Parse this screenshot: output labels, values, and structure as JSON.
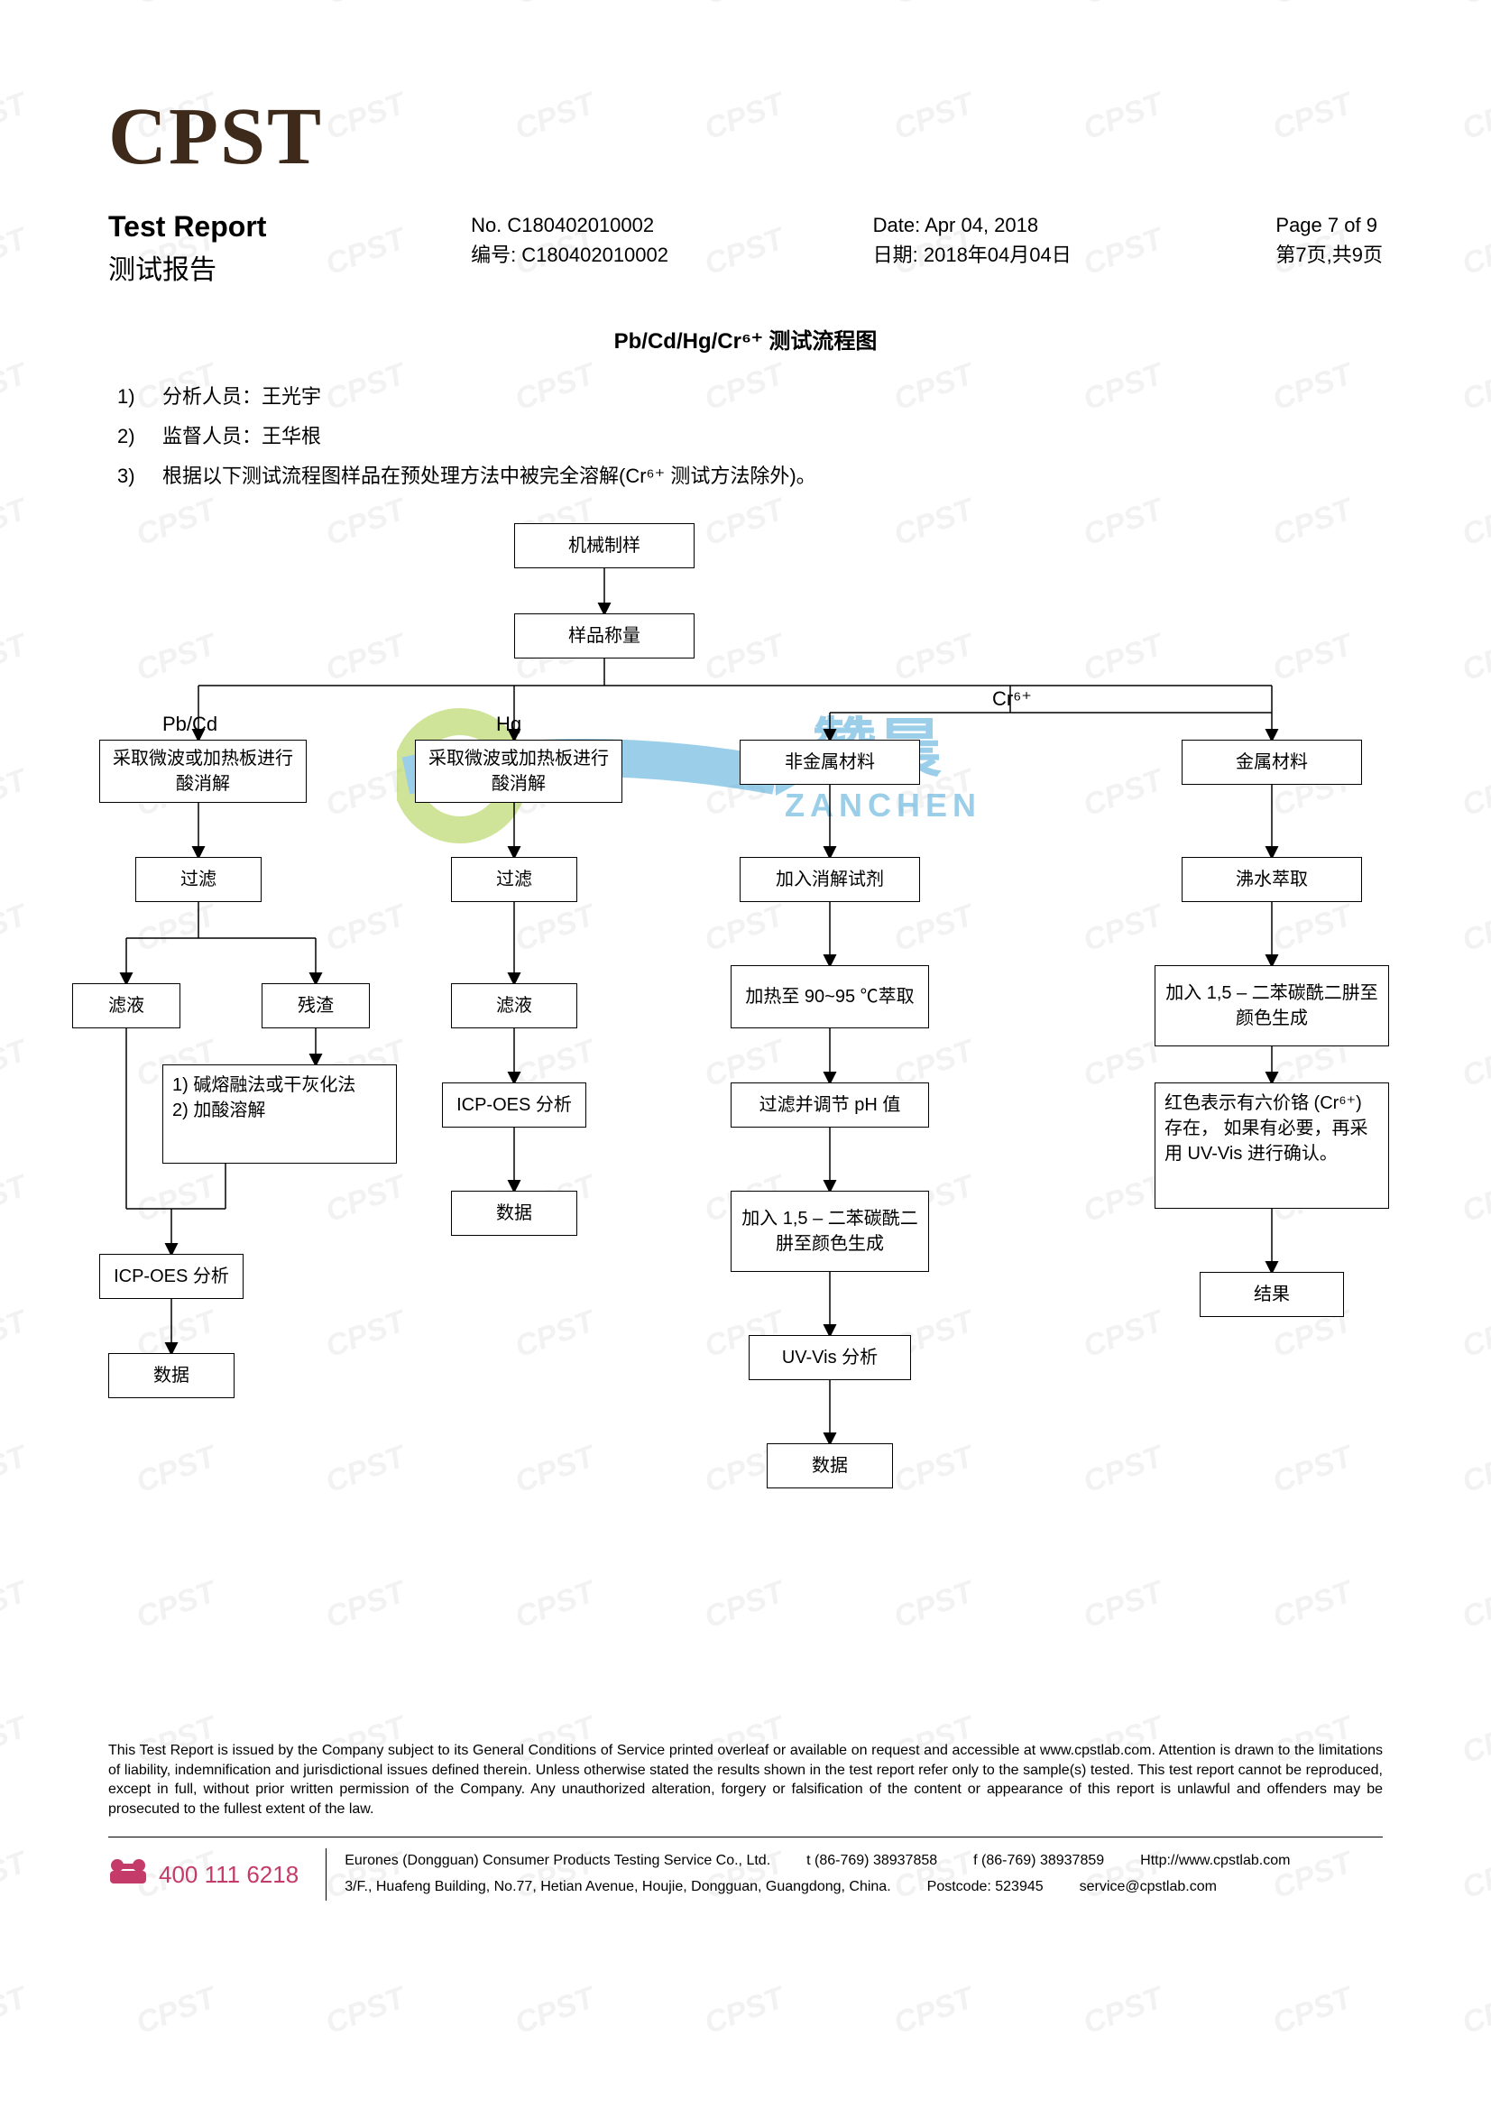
{
  "watermark_text": "CPST",
  "logo": "CPST",
  "header": {
    "title_en": "Test Report",
    "title_zh": "测试报告",
    "report_no_en": "No. C180402010002",
    "report_no_zh": "编号: C180402010002",
    "date_en": "Date: Apr 04, 2018",
    "date_zh": "日期: 2018年04月04日",
    "page_en": "Page 7 of 9",
    "page_zh": "第7页,共9页"
  },
  "section_title": "Pb/Cd/Hg/Cr⁶⁺ 测试流程图",
  "list": {
    "1": "分析人员：王光宇",
    "2": "监督人员：王华根",
    "3": "根据以下测试流程图样品在预处理方法中被完全溶解(Cr⁶⁺ 测试方法除外)。"
  },
  "labels": {
    "pbcd": "Pb/Cd",
    "hg": "Hg",
    "cr6": "Cr⁶⁺"
  },
  "nodes": {
    "n_mech": "机械制样",
    "n_weigh": "样品称量",
    "n_digest1": "采取微波或加热板进行酸消解",
    "n_digest2": "采取微波或加热板进行酸消解",
    "n_nonmetal": "非金属材料",
    "n_metal": "金属材料",
    "n_filter1": "过滤",
    "n_filter2": "过滤",
    "n_addreagent": "加入消解试剂",
    "n_boil": "沸水萃取",
    "n_filtrate1": "滤液",
    "n_residue1": "残渣",
    "n_filtrate2": "滤液",
    "n_heat90": "加热至 90~95 ℃萃取",
    "n_add15_b": "加入 1,5 – 二苯碳酰二肼至颜色生成",
    "n_alkali": "1)  碱熔融法或干灰化法\n2)  加酸溶解",
    "n_icp1_label": "ICP-OES 分析",
    "n_filterph": "过滤并调节 pH 值",
    "n_red": "红色表示有六价铬 (Cr⁶⁺) 存在， 如果有必要，再采用 UV-Vis 进行确认。",
    "n_data2": "数据",
    "n_add15_a": "加入 1,5 – 二苯碳酰二肼至颜色生成",
    "n_icp2_label": "ICP-OES 分析",
    "n_result": "结果",
    "n_data1": "数据",
    "n_uvvis": "UV-Vis 分析",
    "n_data3": "数据"
  },
  "wm_logo": {
    "text_top": "赞晨",
    "text_bottom": "ZANCHEN"
  },
  "disclaimer": "This Test Report is issued by the Company subject to its General Conditions of Service printed overleaf or available on request and accessible at www.cpstlab.com. Attention is drawn to the limitations of liability, indemnification and jurisdictional issues defined therein. Unless otherwise stated the results shown in the test report refer only to the sample(s) tested. This test report cannot be reproduced, except in full, without prior written permission of the Company. Any unauthorized alteration, forgery or falsification of the content or appearance of this report is unlawful and offenders may be prosecuted to the fullest extent of the law.",
  "footer": {
    "phone": "400 111 6218",
    "company": "Eurones (Dongguan) Consumer Products Testing Service Co., Ltd.",
    "tel": "t (86-769) 38937858",
    "fax": "f (86-769) 38937859",
    "web": "Http://www.cpstlab.com",
    "address": "3/F., Huafeng Building, No.77, Hetian Avenue, Houjie, Dongguan, Guangdong, China.",
    "postcode": "Postcode: 523945",
    "email": "service@cpstlab.com"
  },
  "colors": {
    "logo": "#3d2a1a",
    "watermark": "#f2f2f2",
    "phone": "#c43b6a",
    "wm_blue": "#4aa8d8",
    "wm_green": "#a8cf45"
  }
}
